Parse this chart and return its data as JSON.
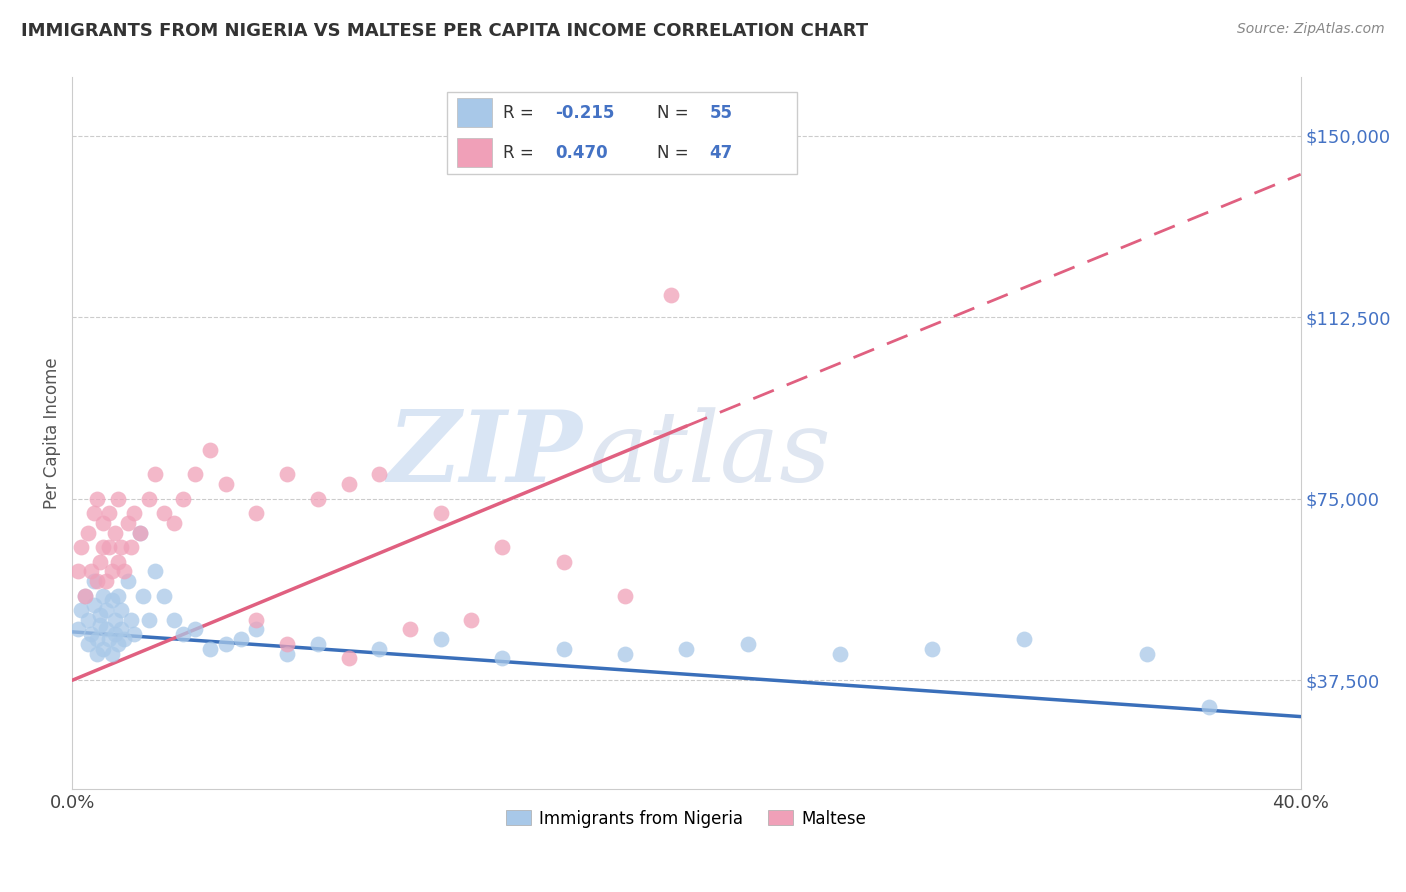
{
  "title": "IMMIGRANTS FROM NIGERIA VS MALTESE PER CAPITA INCOME CORRELATION CHART",
  "source": "Source: ZipAtlas.com",
  "ylabel": "Per Capita Income",
  "y_ticks": [
    37500,
    75000,
    112500,
    150000
  ],
  "y_tick_labels": [
    "$37,500",
    "$75,000",
    "$112,500",
    "$150,000"
  ],
  "xlim": [
    0.0,
    0.4
  ],
  "ylim": [
    15000,
    162000
  ],
  "nigeria_color": "#a8c8e8",
  "nigeria_line_color": "#3a6fba",
  "maltese_color": "#f0a0b8",
  "maltese_line_color": "#e06080",
  "watermark_zip": "ZIP",
  "watermark_atlas": "atlas",
  "nigeria_scatter_x": [
    0.002,
    0.003,
    0.004,
    0.005,
    0.005,
    0.006,
    0.007,
    0.007,
    0.008,
    0.008,
    0.009,
    0.009,
    0.01,
    0.01,
    0.011,
    0.011,
    0.012,
    0.013,
    0.013,
    0.014,
    0.014,
    0.015,
    0.015,
    0.016,
    0.016,
    0.017,
    0.018,
    0.019,
    0.02,
    0.022,
    0.023,
    0.025,
    0.027,
    0.03,
    0.033,
    0.036,
    0.04,
    0.045,
    0.05,
    0.055,
    0.06,
    0.07,
    0.08,
    0.1,
    0.12,
    0.14,
    0.16,
    0.18,
    0.2,
    0.22,
    0.25,
    0.28,
    0.31,
    0.35,
    0.37
  ],
  "nigeria_scatter_y": [
    48000,
    52000,
    55000,
    45000,
    50000,
    47000,
    53000,
    58000,
    43000,
    46000,
    51000,
    49000,
    44000,
    55000,
    48000,
    52000,
    46000,
    54000,
    43000,
    50000,
    47000,
    45000,
    55000,
    48000,
    52000,
    46000,
    58000,
    50000,
    47000,
    68000,
    55000,
    50000,
    60000,
    55000,
    50000,
    47000,
    48000,
    44000,
    45000,
    46000,
    48000,
    43000,
    45000,
    44000,
    46000,
    42000,
    44000,
    43000,
    44000,
    45000,
    43000,
    44000,
    46000,
    43000,
    32000
  ],
  "maltese_scatter_x": [
    0.002,
    0.003,
    0.004,
    0.005,
    0.006,
    0.007,
    0.008,
    0.008,
    0.009,
    0.01,
    0.01,
    0.011,
    0.012,
    0.012,
    0.013,
    0.014,
    0.015,
    0.015,
    0.016,
    0.017,
    0.018,
    0.019,
    0.02,
    0.022,
    0.025,
    0.027,
    0.03,
    0.033,
    0.036,
    0.04,
    0.045,
    0.05,
    0.06,
    0.07,
    0.08,
    0.09,
    0.1,
    0.12,
    0.14,
    0.16,
    0.18,
    0.06,
    0.07,
    0.09,
    0.11,
    0.13,
    0.195
  ],
  "maltese_scatter_y": [
    60000,
    65000,
    55000,
    68000,
    60000,
    72000,
    58000,
    75000,
    62000,
    65000,
    70000,
    58000,
    65000,
    72000,
    60000,
    68000,
    62000,
    75000,
    65000,
    60000,
    70000,
    65000,
    72000,
    68000,
    75000,
    80000,
    72000,
    70000,
    75000,
    80000,
    85000,
    78000,
    72000,
    80000,
    75000,
    78000,
    80000,
    72000,
    65000,
    62000,
    55000,
    50000,
    45000,
    42000,
    48000,
    50000,
    117000
  ],
  "nigeria_line_x0": 0.0,
  "nigeria_line_y0": 47500,
  "nigeria_line_x1": 0.4,
  "nigeria_line_y1": 30000,
  "maltese_line_x0": 0.0,
  "maltese_line_y0": 37500,
  "maltese_line_solid_x1": 0.2,
  "maltese_line_solid_y1": 90000,
  "maltese_line_dash_x1": 0.4,
  "maltese_line_dash_y1": 142000
}
